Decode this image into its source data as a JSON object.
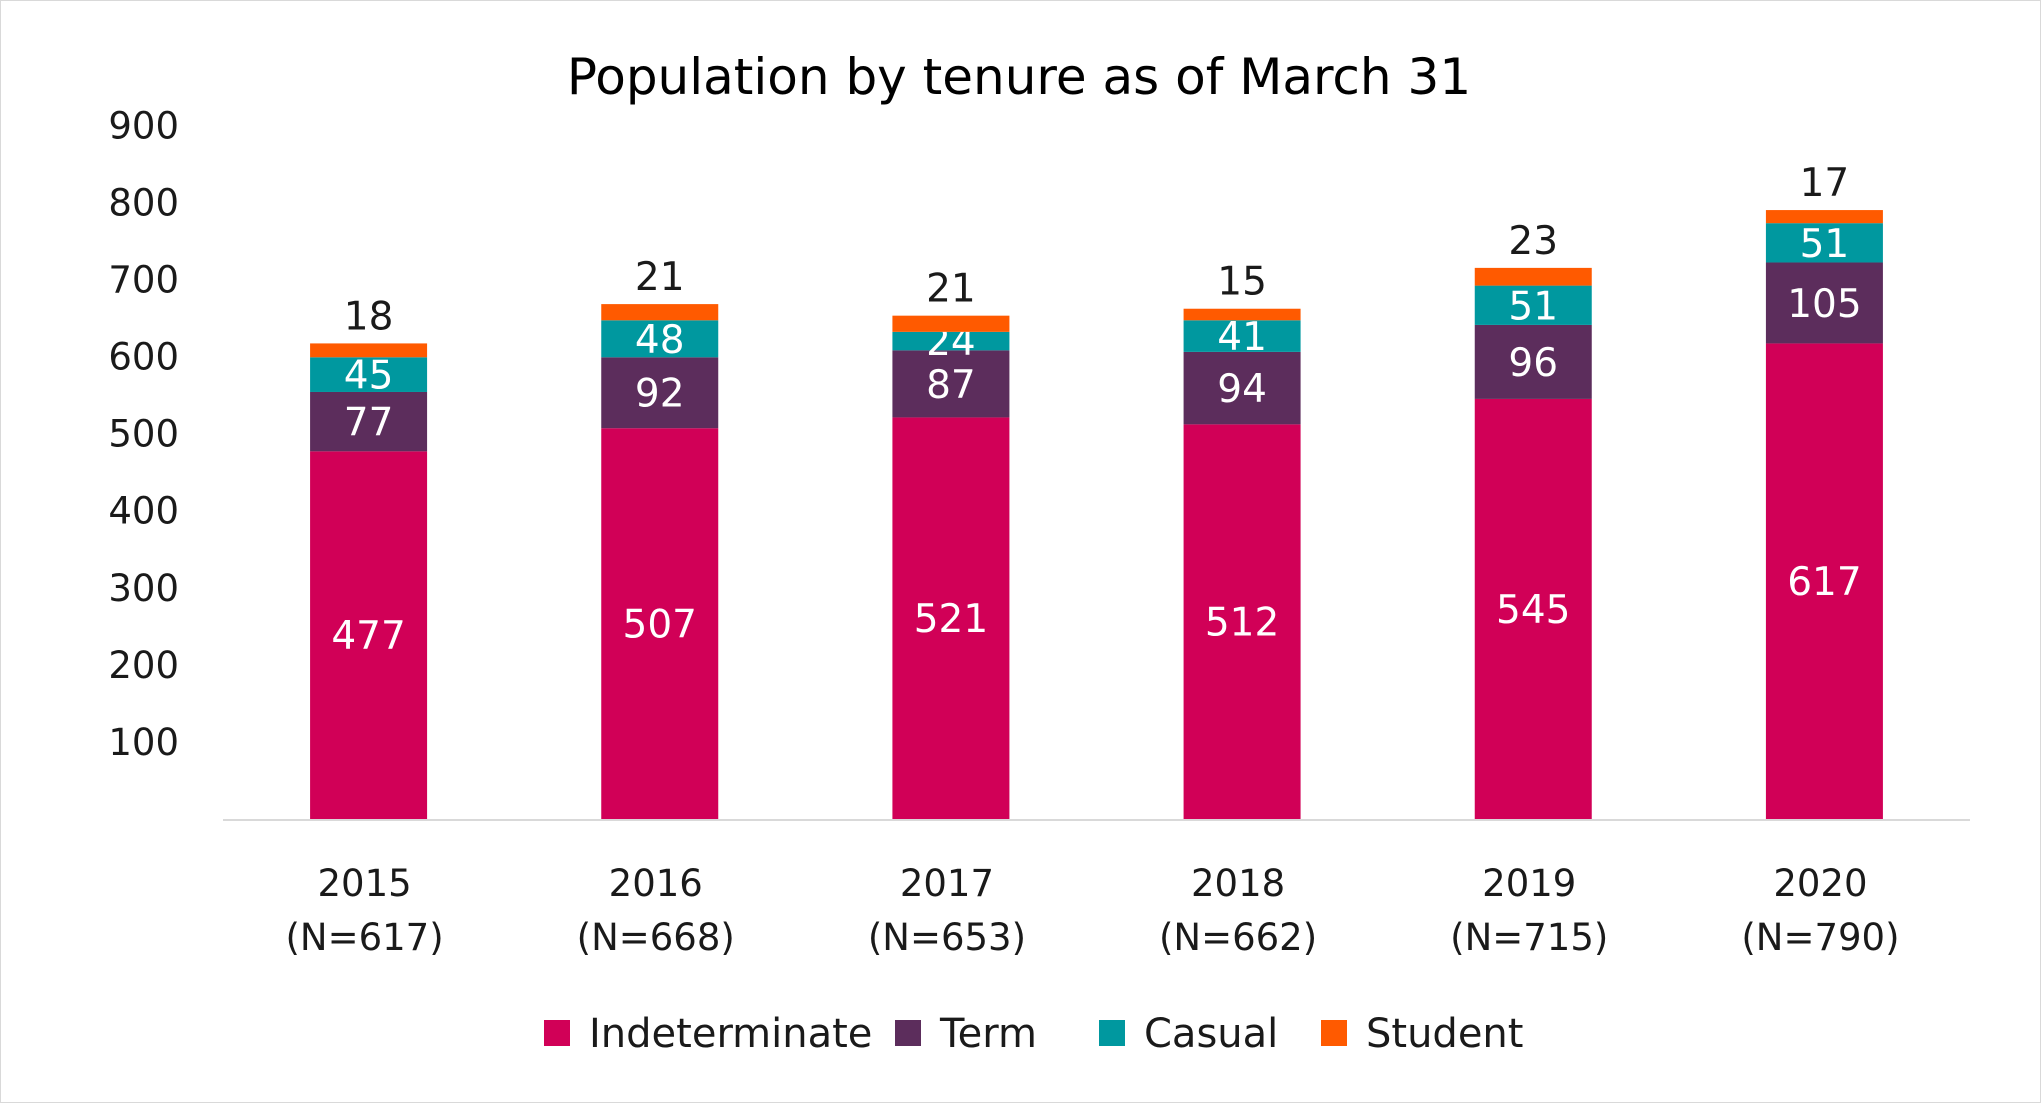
{
  "chart_data": {
    "type": "bar",
    "stacked": true,
    "title": "Population by tenure as of March 31",
    "xlabel": "",
    "ylabel": "",
    "ylim": [
      0,
      900
    ],
    "yticks": [
      100,
      200,
      300,
      400,
      500,
      600,
      700,
      800,
      900
    ],
    "grid": false,
    "legend_position": "bottom",
    "categories": [
      [
        "2015",
        "(N=617)"
      ],
      [
        "2016",
        "(N=668)"
      ],
      [
        "2017",
        "(N=653)"
      ],
      [
        "2018",
        "(N=662)"
      ],
      [
        "2019",
        "(N=715)"
      ],
      [
        "2020",
        "(N=790)"
      ]
    ],
    "series": [
      {
        "name": "Indeterminate",
        "color": "#d10057",
        "label_color": "#ffffff",
        "values": [
          477,
          507,
          521,
          512,
          545,
          617
        ]
      },
      {
        "name": "Term",
        "color": "#5c2d5c",
        "label_color": "#ffffff",
        "values": [
          77,
          92,
          87,
          94,
          96,
          105
        ]
      },
      {
        "name": "Casual",
        "color": "#00989f",
        "label_color": "#ffffff",
        "values": [
          45,
          48,
          24,
          41,
          51,
          51
        ]
      },
      {
        "name": "Student",
        "color": "#ff5a00",
        "label_color": "#1a1a1a",
        "values": [
          18,
          21,
          21,
          15,
          23,
          17
        ]
      }
    ]
  }
}
